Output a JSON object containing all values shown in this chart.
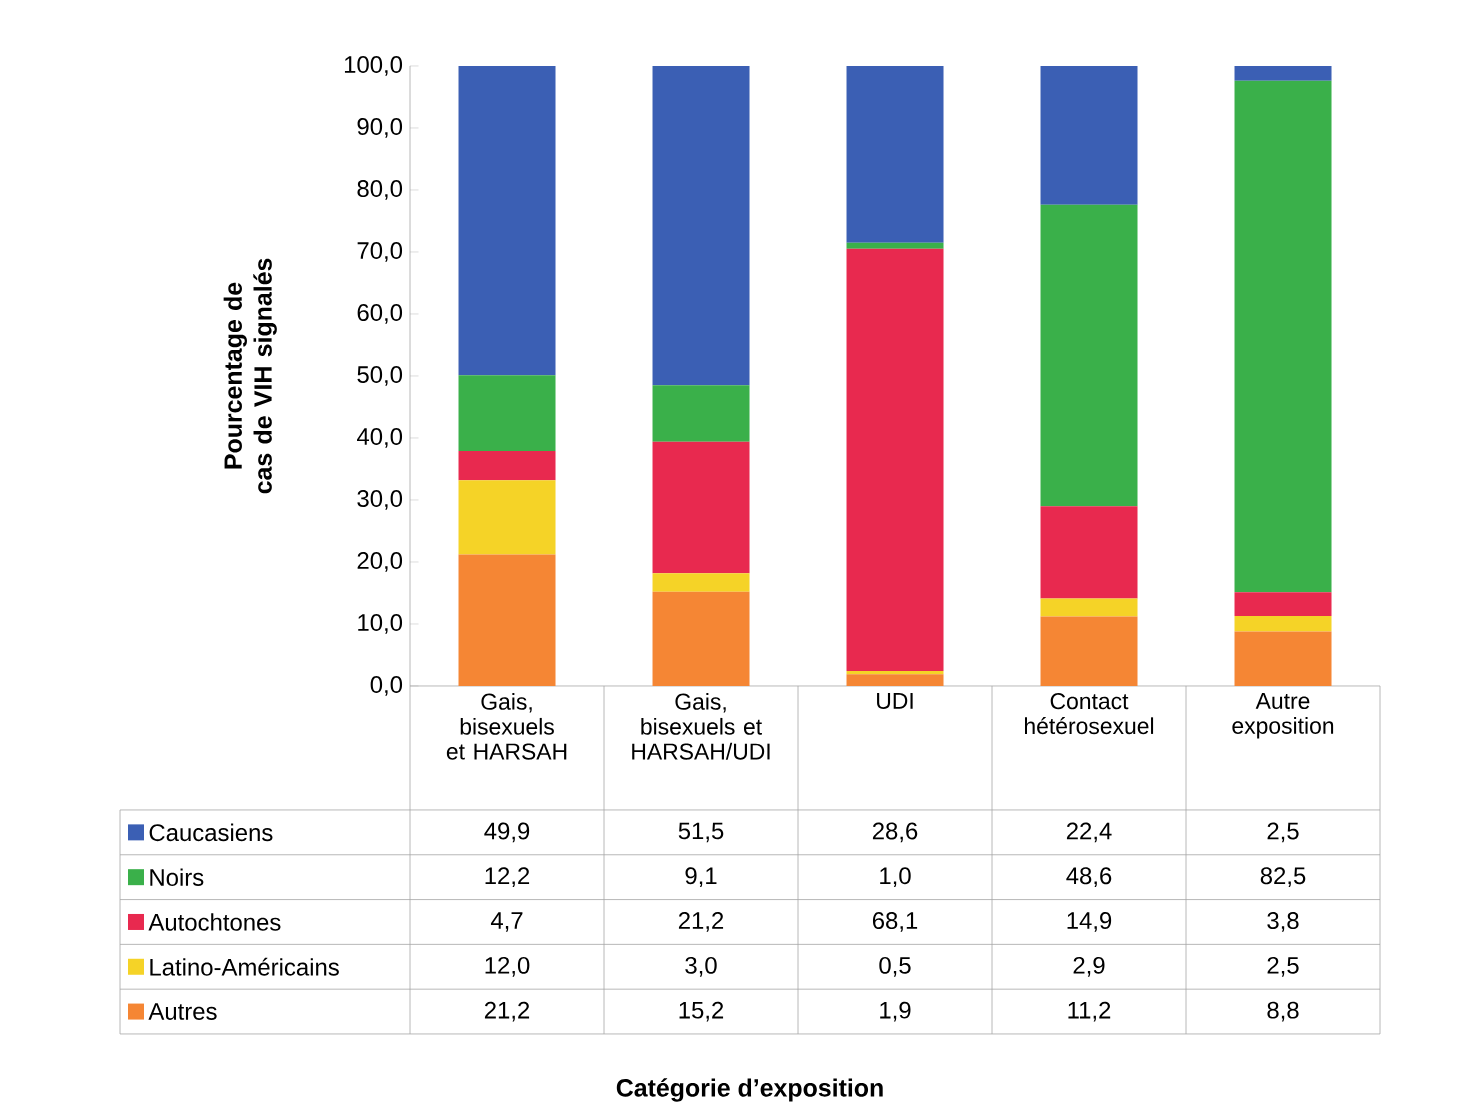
{
  "chart_data": {
    "type": "bar",
    "stacked": true,
    "ylabel": "Pourcentage de cas de VIH signalés",
    "annotations": [
      "Catégorie d’exposition"
    ],
    "categories": [
      "Gais, bisexuels et HARSAH",
      "Gais, bisexuels et HARSAH/UDI",
      "UDI",
      "Contact hétérosexuel",
      "Autre exposition"
    ],
    "series": [
      {
        "name": "Autres",
        "color": "#f58634",
        "values": [
          21.2,
          15.2,
          1.9,
          11.2,
          8.8
        ],
        "value_labels": [
          "21,2",
          "15,2",
          "1,9",
          "11,2",
          "8,8"
        ]
      },
      {
        "name": "Latino-Américains",
        "color": "#f5d327",
        "values": [
          12.0,
          3.0,
          0.5,
          2.9,
          2.5
        ],
        "value_labels": [
          "12,0",
          "3,0",
          "0,5",
          "2,9",
          "2,5"
        ]
      },
      {
        "name": "Autochtones",
        "color": "#e8294f",
        "values": [
          4.7,
          21.2,
          68.1,
          14.9,
          3.8
        ],
        "value_labels": [
          "4,7",
          "21,2",
          "68,1",
          "14,9",
          "3,8"
        ]
      },
      {
        "name": "Noirs",
        "color": "#3ab04a",
        "values": [
          12.2,
          9.1,
          1.0,
          48.6,
          82.5
        ],
        "value_labels": [
          "12,2",
          "9,1",
          "1,0",
          "48,6",
          "82,5"
        ]
      },
      {
        "name": "Caucasiens",
        "color": "#3b5fb4",
        "values": [
          49.9,
          51.5,
          28.6,
          22.4,
          2.5
        ],
        "value_labels": [
          "49,9",
          "51,5",
          "28,6",
          "22,4",
          "2,5"
        ]
      }
    ],
    "ylim": [
      0,
      100
    ],
    "yticks": [
      {
        "value": 0,
        "label": "0,0"
      },
      {
        "value": 10,
        "label": "10,0"
      },
      {
        "value": 20,
        "label": "20,0"
      },
      {
        "value": 30,
        "label": "30,0"
      },
      {
        "value": 40,
        "label": "40,0"
      },
      {
        "value": 50,
        "label": "50,0"
      },
      {
        "value": 60,
        "label": "60,0"
      },
      {
        "value": 70,
        "label": "70,0"
      },
      {
        "value": 80,
        "label": "80,0"
      },
      {
        "value": 90,
        "label": "90,0"
      },
      {
        "value": 100,
        "label": "100,0"
      }
    ],
    "legend": "bottom",
    "grid": false
  }
}
